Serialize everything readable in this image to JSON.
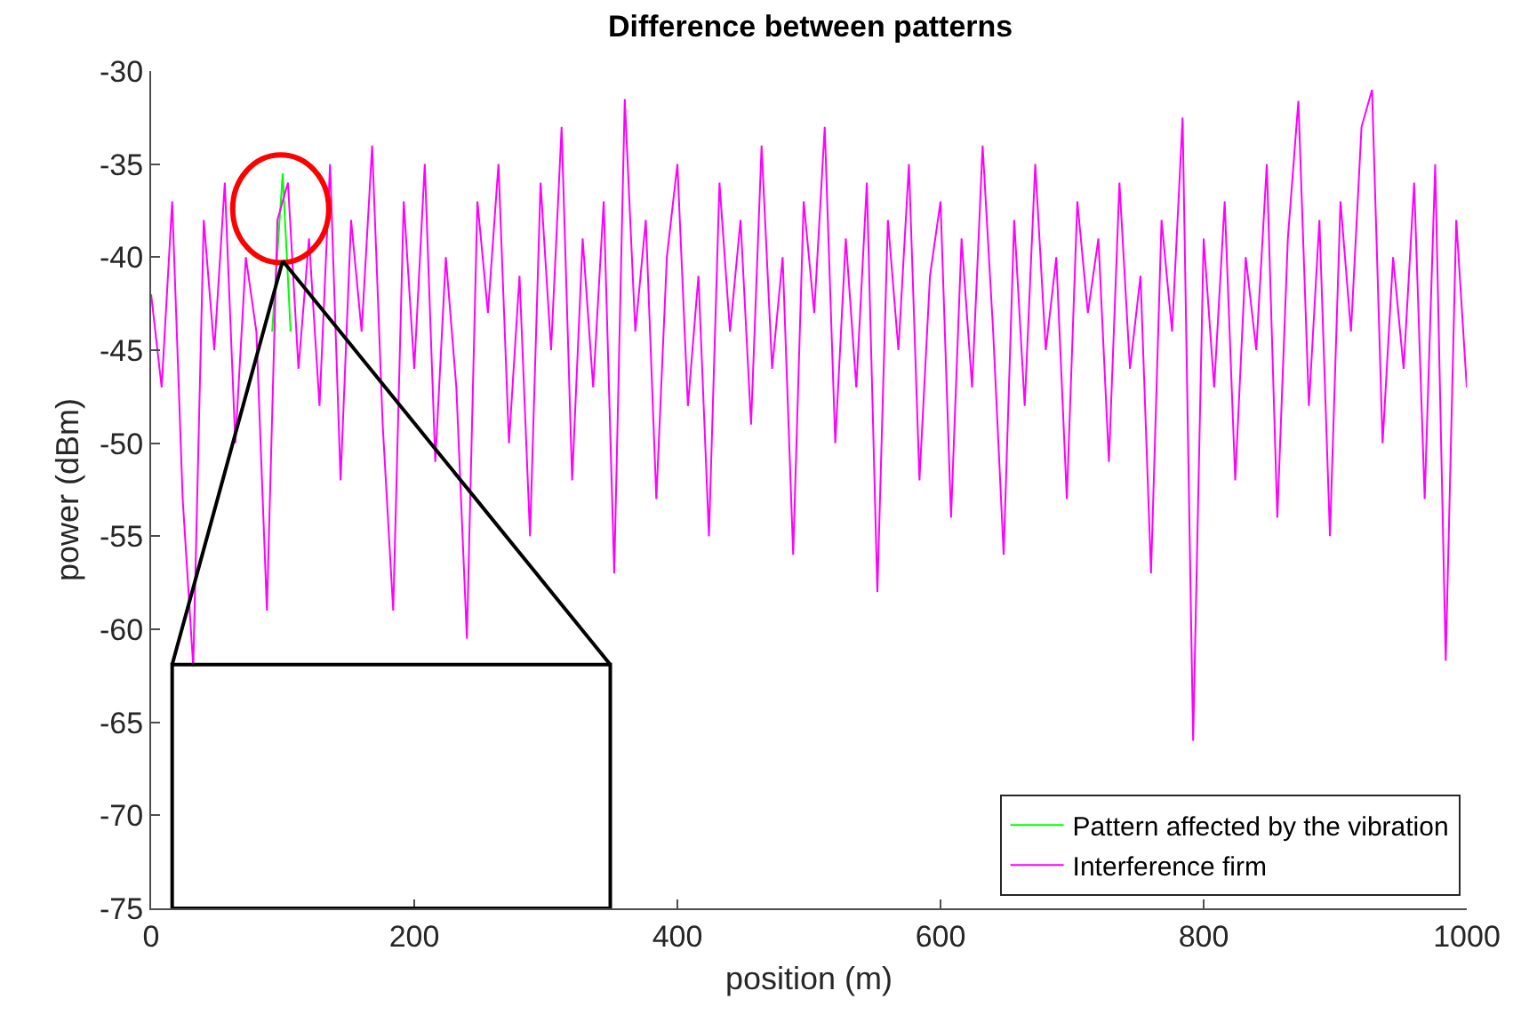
{
  "chart_data": {
    "type": "line",
    "title": "Difference between patterns",
    "xlabel": "position (m)",
    "ylabel": "power (dBm)",
    "xlim": [
      0,
      1000
    ],
    "xticks": [
      0,
      200,
      400,
      600,
      800,
      1000
    ],
    "ylim": [
      -75,
      -30
    ],
    "yticks": [
      -75,
      -70,
      -65,
      -60,
      -55,
      -50,
      -45,
      -40,
      -35,
      -30
    ],
    "legend": "bottom right",
    "marker": "none",
    "line_style": "solid",
    "series": [
      {
        "name": "Pattern affected by the vibration",
        "color": "#00ff00",
        "x": [
          92,
          100,
          106
        ],
        "values": [
          -44,
          -35.5,
          -44
        ]
      },
      {
        "name": "Interference firm",
        "color": "#ff00ff",
        "x": [
          0,
          8,
          16,
          24,
          32,
          40,
          48,
          56,
          64,
          72,
          80,
          88,
          96,
          104,
          112,
          120,
          128,
          136,
          144,
          152,
          160,
          168,
          176,
          184,
          192,
          200,
          208,
          216,
          224,
          232,
          240,
          248,
          256,
          264,
          272,
          280,
          288,
          296,
          304,
          312,
          320,
          328,
          336,
          344,
          352,
          360,
          368,
          376,
          384,
          392,
          400,
          408,
          416,
          424,
          432,
          440,
          448,
          456,
          464,
          472,
          480,
          488,
          496,
          504,
          512,
          520,
          528,
          536,
          544,
          552,
          560,
          568,
          576,
          584,
          592,
          600,
          608,
          616,
          624,
          632,
          640,
          648,
          656,
          664,
          672,
          680,
          688,
          696,
          704,
          712,
          720,
          728,
          736,
          744,
          752,
          760,
          768,
          776,
          784,
          792,
          800,
          808,
          816,
          824,
          832,
          840,
          848,
          856,
          864,
          872,
          880,
          888,
          896,
          904,
          912,
          920,
          928,
          936,
          944,
          952,
          960,
          968,
          976,
          984,
          992,
          1000
        ],
        "values": [
          -42,
          -47,
          -37,
          -53,
          -62,
          -38,
          -45,
          -36,
          -50,
          -40,
          -44,
          -59,
          -38,
          -36,
          -46,
          -39,
          -48,
          -35,
          -52,
          -38,
          -44,
          -34,
          -49,
          -59,
          -37,
          -46,
          -35,
          -51,
          -40,
          -47,
          -60.5,
          -37,
          -43,
          -35,
          -50,
          -41,
          -55,
          -36,
          -45,
          -33,
          -52,
          -39,
          -47,
          -37,
          -57,
          -31.5,
          -44,
          -38,
          -53,
          -40,
          -35,
          -48,
          -41,
          -55,
          -36,
          -44,
          -38,
          -49,
          -34,
          -46,
          -40,
          -56,
          -37,
          -43,
          -33,
          -50,
          -39,
          -47,
          -36,
          -58,
          -38,
          -45,
          -35,
          -52,
          -41,
          -37,
          -54,
          -39,
          -47,
          -34,
          -44,
          -56,
          -38,
          -48,
          -35,
          -45,
          -40,
          -53,
          -37,
          -43,
          -39,
          -51,
          -36,
          -46,
          -41,
          -57,
          -38,
          -44,
          -32.5,
          -66,
          -39,
          -47,
          -37,
          -52,
          -40,
          -45,
          -35,
          -54,
          -39,
          -31.6,
          -48,
          -38,
          -55,
          -37,
          -44,
          -33,
          -31,
          -50,
          -40,
          -46,
          -36,
          -53,
          -35,
          -61.7,
          -38,
          -47
        ]
      }
    ]
  }
}
